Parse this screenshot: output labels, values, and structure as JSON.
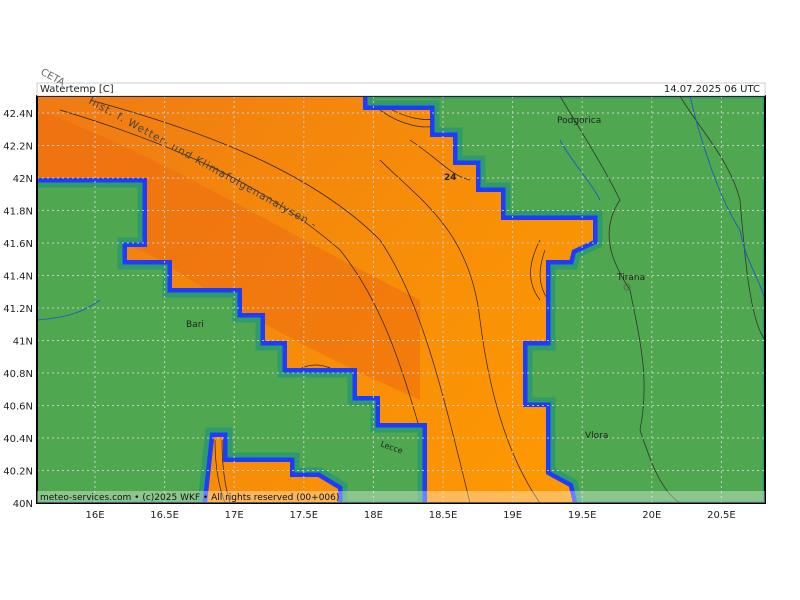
{
  "header": {
    "title": "Watertemp [C]",
    "timestamp": "14.07.2025 06 UTC"
  },
  "watermark": {
    "org": "CETA",
    "institute": "Inst. f. Wetter- und Klimafolgenanalysen -"
  },
  "footer": "meteo-services.com • (c)2025 WKF • All rights reserved (00+006)",
  "lat_labels": [
    "42.4N",
    "42.2N",
    "42N",
    "41.8N",
    "41.6N",
    "41.4N",
    "41.2N",
    "41N",
    "40.8N",
    "40.6N",
    "40.4N",
    "40.2N",
    "40N"
  ],
  "lon_labels": [
    "16E",
    "16.5E",
    "17E",
    "17.5E",
    "18E",
    "18.5E",
    "19E",
    "19.5E",
    "20E",
    "20.5E"
  ],
  "places": [
    "Podgorica",
    "Tirana",
    "Bari",
    "Lecce",
    "Vlora"
  ],
  "contour_label": "24"
}
